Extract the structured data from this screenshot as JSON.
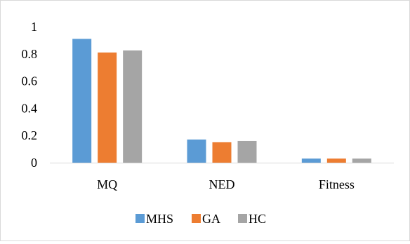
{
  "colors": {
    "MHS": "#5b9bd5",
    "GA": "#ed7d31",
    "HC": "#a5a5a5",
    "axis": "#d9d9d9"
  },
  "chart_data": {
    "type": "bar",
    "categories": [
      "MQ",
      "NED",
      "Fitness"
    ],
    "series": [
      {
        "name": "MHS",
        "values": [
          0.91,
          0.17,
          0.03
        ]
      },
      {
        "name": "GA",
        "values": [
          0.81,
          0.15,
          0.03
        ]
      },
      {
        "name": "HC",
        "values": [
          0.825,
          0.16,
          0.03
        ]
      }
    ],
    "yticks": [
      "0",
      "0.2",
      "0.4",
      "0.6",
      "0.8",
      "1"
    ],
    "ylim": [
      0,
      1
    ],
    "title": "",
    "xlabel": "",
    "ylabel": "",
    "grid": false,
    "legend_position": "bottom"
  }
}
